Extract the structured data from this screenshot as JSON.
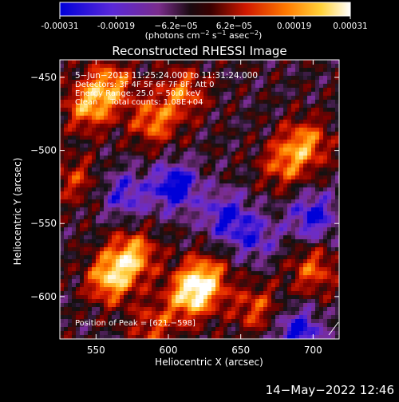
{
  "colorbar": {
    "ticks": [
      "-0.00031",
      "-0.00019",
      "−6.2e−05",
      "6.2e−05",
      "0.00019",
      "0.00031"
    ],
    "tick_values": [
      -0.00031,
      -0.00019,
      -6.2e-05,
      6.2e-05,
      0.00019,
      0.00031
    ],
    "range": [
      -0.00031,
      0.00031
    ],
    "units_text": "(photons cm",
    "units_sup1": "−2",
    "units_mid": " s",
    "units_sup2": "−1",
    "units_end": " asec",
    "units_sup3": "−2",
    "units_close": ")"
  },
  "chart_data": {
    "type": "heatmap",
    "title": "Reconstructed RHESSI Image",
    "xlabel": "Heliocentric X (arcsec)",
    "ylabel": "Heliocentric Y (arcsec)",
    "xlim": [
      525,
      718
    ],
    "ylim": [
      -629,
      -438
    ],
    "x_ticks": [
      550,
      600,
      650,
      700
    ],
    "y_ticks": [
      -450,
      -500,
      -550,
      -600
    ],
    "x_tick_labels": [
      "550",
      "600",
      "650",
      "700"
    ],
    "y_tick_labels": [
      "−450",
      "−500",
      "−550",
      "−600"
    ],
    "annotations": [
      "5−Jun−2013 11:25:24.000 to 11:31:24.000",
      "Detectors: 3F 4F 5F 6F 7F 8F; Att 0",
      "Energy Range: 25.0 − 50.0 keV",
      "Clean     Total counts: 1.08E+04"
    ],
    "peak_label": "Position of Peak = [621,−598]",
    "peak": [
      621,
      -598
    ],
    "grid": false,
    "colormap": [
      "#0000d8",
      "#6a2cd0",
      "#7a2c8c",
      "#111111",
      "#7a0000",
      "#e02000",
      "#ff8000",
      "#ffd040",
      "#ffffff"
    ],
    "bright_regions": [
      {
        "x": 560,
        "y": -588,
        "level": 0.95
      },
      {
        "x": 575,
        "y": -572,
        "level": 0.9
      },
      {
        "x": 615,
        "y": -600,
        "level": 0.92
      },
      {
        "x": 625,
        "y": -588,
        "level": 0.85
      },
      {
        "x": 545,
        "y": -470,
        "level": 0.8
      },
      {
        "x": 560,
        "y": -455,
        "level": 0.75
      },
      {
        "x": 590,
        "y": -480,
        "level": 0.7
      },
      {
        "x": 610,
        "y": -460,
        "level": 0.65
      },
      {
        "x": 695,
        "y": -495,
        "level": 0.75
      },
      {
        "x": 680,
        "y": -510,
        "level": 0.6
      },
      {
        "x": 700,
        "y": -582,
        "level": 0.6
      },
      {
        "x": 660,
        "y": -608,
        "level": 0.55
      },
      {
        "x": 535,
        "y": -520,
        "level": 0.45
      },
      {
        "x": 590,
        "y": -620,
        "level": 0.5
      }
    ],
    "dim_regions": [
      {
        "x": 605,
        "y": -525,
        "level": -0.9
      },
      {
        "x": 640,
        "y": -545,
        "level": -0.7
      },
      {
        "x": 570,
        "y": -530,
        "level": -0.6
      },
      {
        "x": 700,
        "y": -545,
        "level": -0.75
      },
      {
        "x": 690,
        "y": -625,
        "level": -0.8
      },
      {
        "x": 660,
        "y": -560,
        "level": -0.55
      }
    ]
  },
  "footer": {
    "timestamp": "14−May−2022 12:46"
  }
}
